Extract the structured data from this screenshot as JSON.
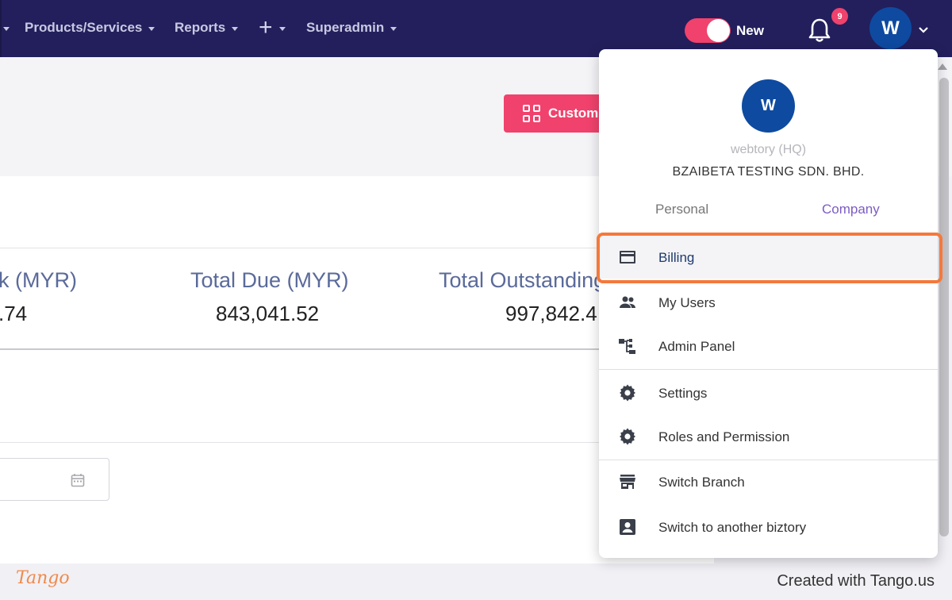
{
  "nav": {
    "items": [
      {
        "label": "Products/Services"
      },
      {
        "label": "Reports"
      },
      {
        "label": "Superadmin"
      }
    ],
    "toggle_label": "New",
    "notification_count": "9",
    "user_initial": "W"
  },
  "page": {
    "custom_button_label": "Custom",
    "stats": [
      {
        "label": "k (MYR)",
        "value": ".74"
      },
      {
        "label": "Total Due (MYR)",
        "value": "843,041.52"
      },
      {
        "label": "Total Outstanding",
        "value": "997,842.4"
      }
    ]
  },
  "dropdown": {
    "avatar_initial": "W",
    "branch": "webtory (HQ)",
    "company": "BZAIBETA TESTING SDN. BHD.",
    "tabs": {
      "personal": "Personal",
      "company": "Company"
    },
    "items": [
      {
        "label": "Billing",
        "icon": "credit-card-icon"
      },
      {
        "label": "My Users",
        "icon": "users-icon"
      },
      {
        "label": "Admin Panel",
        "icon": "admin-panel-icon"
      },
      {
        "label": "Settings",
        "icon": "gear-icon"
      },
      {
        "label": "Roles and Permission",
        "icon": "gear-icon"
      },
      {
        "label": "Switch Branch",
        "icon": "store-icon"
      },
      {
        "label": "Switch to another biztory",
        "icon": "account-box-icon"
      }
    ]
  },
  "footer": {
    "logo": "Tango",
    "created_with": "Created with Tango.us"
  },
  "colors": {
    "nav_bg": "#221f5c",
    "accent_pink": "#f0426c",
    "avatar_blue": "#0e4aa0",
    "highlight_orange": "#f5793b",
    "company_tab_purple": "#7c5cc4"
  }
}
